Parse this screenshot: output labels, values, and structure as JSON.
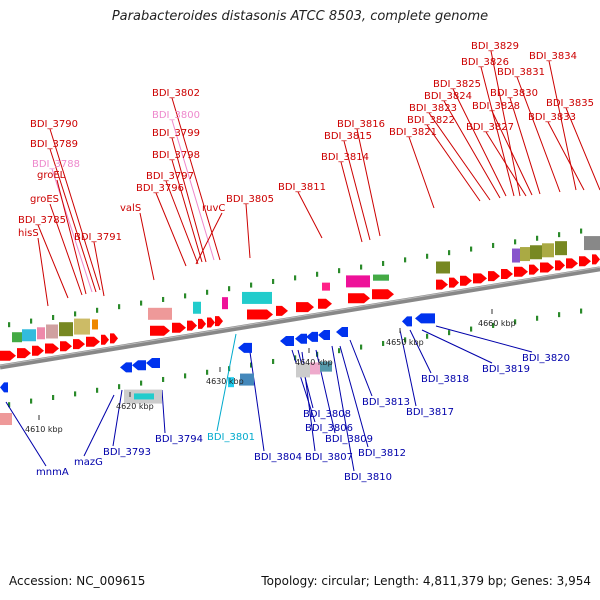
{
  "title": "Parabacteroides distasonis ATCC 8503, complete genome",
  "footer": {
    "accession": "Accession: NC_009615",
    "topology": "Topology: circular; Length: 4,811,379 bp; Genes: 3,954"
  },
  "colors": {
    "forward_label": "#cc0000",
    "reverse_label": "#0000aa",
    "highlight_pink": "#ee88cc",
    "highlight_cyan": "#00aacc",
    "backbone": "#888888"
  },
  "ruler": [
    "4610 kbp",
    "4620 kbp",
    "4630 kbp",
    "4640 kbp",
    "4650 kbp",
    "4660 kbp"
  ],
  "top_labels": [
    {
      "text": "BDI_3829",
      "color": "#cc0000"
    },
    {
      "text": "BDI_3834",
      "color": "#cc0000"
    },
    {
      "text": "BDI_3826",
      "color": "#cc0000"
    },
    {
      "text": "BDI_3831",
      "color": "#cc0000"
    },
    {
      "text": "BDI_3825",
      "color": "#cc0000"
    },
    {
      "text": "BDI_3802",
      "color": "#cc0000"
    },
    {
      "text": "BDI_3824",
      "color": "#cc0000"
    },
    {
      "text": "BDI_3830",
      "color": "#cc0000"
    },
    {
      "text": "BDI_3823",
      "color": "#cc0000"
    },
    {
      "text": "BDI_3828",
      "color": "#cc0000"
    },
    {
      "text": "BDI_3835",
      "color": "#cc0000"
    },
    {
      "text": "BDI_3800",
      "color": "#ee88cc"
    },
    {
      "text": "BDI_3833",
      "color": "#cc0000"
    },
    {
      "text": "BDI_3822",
      "color": "#cc0000"
    },
    {
      "text": "BDI_3816",
      "color": "#cc0000"
    },
    {
      "text": "BDI_3790",
      "color": "#cc0000"
    },
    {
      "text": "BDI_3827",
      "color": "#cc0000"
    },
    {
      "text": "BDI_3821",
      "color": "#cc0000"
    },
    {
      "text": "BDI_3799",
      "color": "#cc0000"
    },
    {
      "text": "BDI_3815",
      "color": "#cc0000"
    },
    {
      "text": "BDI_3789",
      "color": "#cc0000"
    },
    {
      "text": "BDI_3798",
      "color": "#cc0000"
    },
    {
      "text": "BDI_3814",
      "color": "#cc0000"
    },
    {
      "text": "BDI_3788",
      "color": "#ee88cc"
    },
    {
      "text": "groEL",
      "color": "#cc0000"
    },
    {
      "text": "BDI_3797",
      "color": "#cc0000"
    },
    {
      "text": "BDI_3796",
      "color": "#cc0000"
    },
    {
      "text": "BDI_3811",
      "color": "#cc0000"
    },
    {
      "text": "groES",
      "color": "#cc0000"
    },
    {
      "text": "BDI_3805",
      "color": "#cc0000"
    },
    {
      "text": "valS",
      "color": "#cc0000"
    },
    {
      "text": "ruvC",
      "color": "#cc0000"
    },
    {
      "text": "BDI_3785",
      "color": "#cc0000"
    },
    {
      "text": "hisS",
      "color": "#cc0000"
    },
    {
      "text": "BDI_3791",
      "color": "#cc0000"
    }
  ],
  "bottom_labels": [
    {
      "text": "BDI_3820",
      "color": "#0000aa"
    },
    {
      "text": "BDI_3819",
      "color": "#0000aa"
    },
    {
      "text": "BDI_3818",
      "color": "#0000aa"
    },
    {
      "text": "BDI_3813",
      "color": "#0000aa"
    },
    {
      "text": "BDI_3817",
      "color": "#0000aa"
    },
    {
      "text": "BDI_3808",
      "color": "#0000aa"
    },
    {
      "text": "BDI_3806",
      "color": "#0000aa"
    },
    {
      "text": "BDI_3801",
      "color": "#00aacc"
    },
    {
      "text": "BDI_3794",
      "color": "#0000aa"
    },
    {
      "text": "BDI_3809",
      "color": "#0000aa"
    },
    {
      "text": "BDI_3812",
      "color": "#0000aa"
    },
    {
      "text": "BDI_3804",
      "color": "#0000aa"
    },
    {
      "text": "BDI_3807",
      "color": "#0000aa"
    },
    {
      "text": "BDI_3793",
      "color": "#0000aa"
    },
    {
      "text": "mazG",
      "color": "#0000aa"
    },
    {
      "text": "BDI_3810",
      "color": "#0000aa"
    },
    {
      "text": "mnmA",
      "color": "#0000aa"
    }
  ]
}
